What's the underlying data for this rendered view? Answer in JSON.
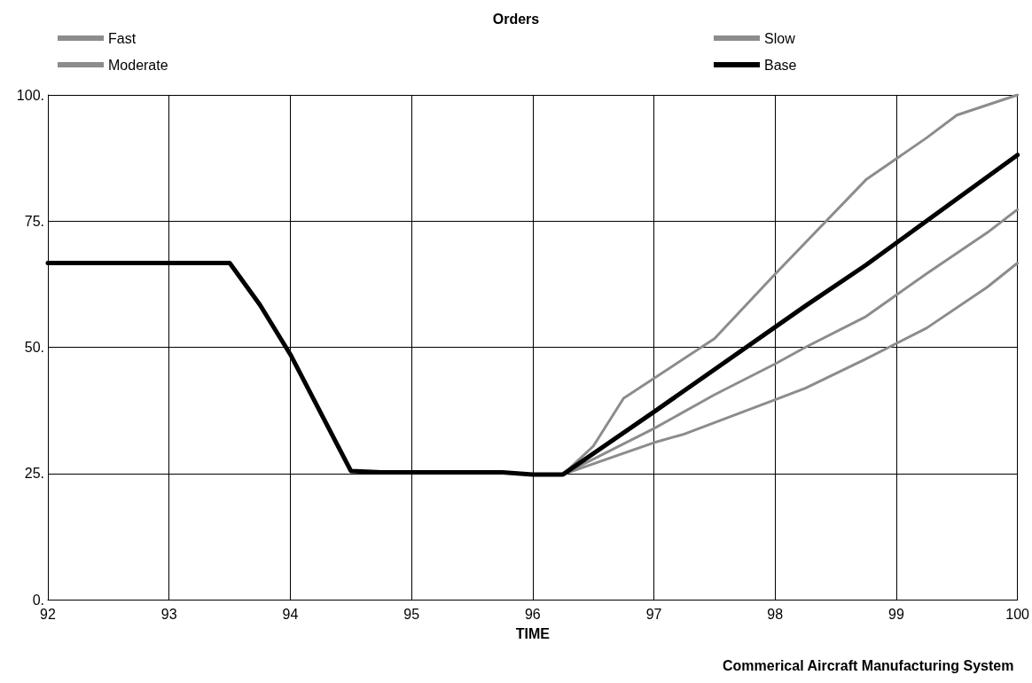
{
  "chart_data": {
    "type": "line",
    "title": "Orders",
    "xlabel": "TIME",
    "annotations": [
      "Commerical Aircraft Manufacturing System"
    ],
    "xlim": [
      92,
      100
    ],
    "xticks": [
      92,
      93,
      94,
      95,
      96,
      97,
      98,
      99,
      100
    ],
    "ylim": [
      0,
      100
    ],
    "yticks": [
      {
        "value": 0,
        "label": "0."
      },
      {
        "value": 25,
        "label": "25."
      },
      {
        "value": 50,
        "label": "50."
      },
      {
        "value": 75,
        "label": "75."
      },
      {
        "value": 100,
        "label": "100."
      }
    ],
    "grid": true,
    "legend": "top left",
    "marker": "none",
    "line_style": "solid",
    "series": [
      {
        "name": "Fast",
        "color": "#8c8c8c",
        "x": [
          96.25,
          96.5,
          96.75,
          97.5,
          98,
          98.75,
          99.25,
          99.5,
          100
        ],
        "values": [
          24.8,
          30.4,
          39.9,
          51.7,
          64.5,
          83.2,
          91.5,
          96,
          100
        ]
      },
      {
        "name": "Slow",
        "color": "#8c8c8c",
        "x": [
          96.25,
          97,
          97.25,
          98,
          98.25,
          98.75,
          99.25,
          99.75,
          100
        ],
        "values": [
          24.8,
          31.1,
          32.8,
          39.6,
          41.9,
          47.7,
          53.8,
          61.9,
          66.7
        ]
      },
      {
        "name": "Moderate",
        "color": "#8c8c8c",
        "x": [
          96.25,
          97,
          97.5,
          98,
          98.25,
          98.75,
          99.25,
          99.75,
          100
        ],
        "values": [
          24.8,
          33.9,
          40.6,
          46.7,
          50,
          56.1,
          64.6,
          72.7,
          77.3
        ]
      },
      {
        "name": "Base",
        "color": "#000000",
        "x": [
          92,
          93.5,
          93.75,
          94,
          94.5,
          94.75,
          95.75,
          96,
          96.25,
          97,
          98.25,
          98.75,
          99.5,
          100
        ],
        "values": [
          66.7,
          66.7,
          58.4,
          48.6,
          25.5,
          25.2,
          25.2,
          24.8,
          24.8,
          37.2,
          58.2,
          66.3,
          79.4,
          88.1
        ]
      }
    ]
  }
}
